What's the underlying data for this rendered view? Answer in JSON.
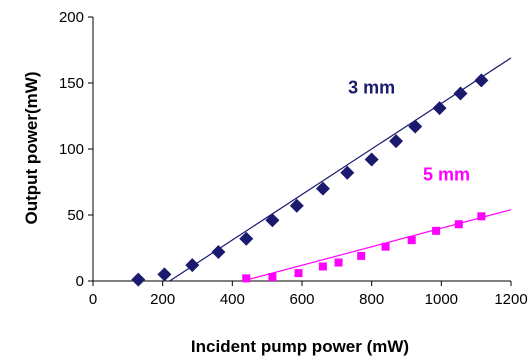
{
  "chart_data": {
    "type": "scatter",
    "title": "",
    "xlabel": "Incident pump power (mW)",
    "ylabel": "Output power(mW)",
    "xlim": [
      0,
      1200
    ],
    "ylim": [
      0,
      200
    ],
    "x_ticks": [
      "0",
      "200",
      "400",
      "600",
      "800",
      "1000",
      "1200"
    ],
    "y_ticks": [
      "0",
      "50",
      "100",
      "150",
      "200"
    ],
    "grid": false,
    "legend": "none",
    "series": [
      {
        "name": "3 mm",
        "color": "#1a1a6e",
        "marker": "diamond",
        "x": [
          130,
          205,
          285,
          360,
          440,
          515,
          585,
          660,
          730,
          800,
          870,
          925,
          995,
          1055,
          1115
        ],
        "y": [
          1,
          5,
          12,
          22,
          32,
          46,
          57,
          70,
          82,
          92,
          106,
          117,
          131,
          142,
          152
        ],
        "fit": {
          "x": [
            220,
            1200
          ],
          "y": [
            0,
            169
          ]
        }
      },
      {
        "name": "5 mm",
        "color": "#ff00ff",
        "marker": "square",
        "x": [
          440,
          515,
          590,
          660,
          705,
          770,
          840,
          915,
          985,
          1050,
          1115
        ],
        "y": [
          2,
          3,
          6,
          11,
          14,
          19,
          26,
          31,
          38,
          43,
          49
        ],
        "fit": {
          "x": [
            430,
            1200
          ],
          "y": [
            0,
            54
          ]
        }
      }
    ],
    "annotations": [
      {
        "text": "3 mm",
        "x": 800,
        "y": 142,
        "color": "#1a1a6e"
      },
      {
        "text": "5 mm",
        "x": 1015,
        "y": 76,
        "color": "#ff00ff"
      }
    ]
  }
}
